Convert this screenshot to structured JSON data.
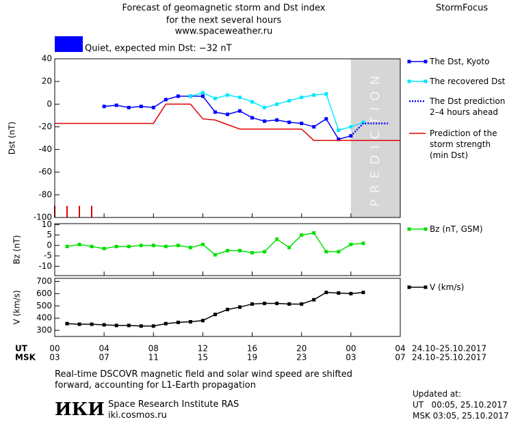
{
  "header": {
    "title": [
      "Forecast of geomagnetic storm and Dst index",
      "for the next several hours",
      "www.spaceweather.ru"
    ],
    "brand": "StormFocus",
    "status": "Quiet, expected min Dst: −32 nT",
    "status_color": "#0000ff"
  },
  "chart_data": [
    {
      "type": "line",
      "ylabel": "Dst (nT)",
      "ylim": [
        -100,
        40
      ],
      "yticks": [
        40,
        20,
        0,
        -20,
        -40,
        -60,
        -80,
        -100
      ],
      "prediction_region": [
        24,
        28
      ],
      "prediction_label": "PREDICTION",
      "series": [
        {
          "name": "The Dst, Kyoto",
          "color": "#0000ff",
          "marker": true,
          "dash": "solid",
          "x": [
            4,
            5,
            6,
            7,
            8,
            9,
            10,
            11,
            12,
            13,
            14,
            15,
            16,
            17,
            18,
            19,
            20,
            21,
            22,
            23,
            24
          ],
          "values": [
            -2,
            -1,
            -3,
            -2,
            -3,
            4,
            7,
            7,
            7,
            -7,
            -9,
            -6,
            -12,
            -15,
            -14,
            -16,
            -17,
            -20,
            -13,
            -31,
            -28
          ]
        },
        {
          "name": "The recovered Dst",
          "color": "#00e8ff",
          "marker": true,
          "dash": "solid",
          "x": [
            11,
            12,
            13,
            14,
            15,
            16,
            17,
            18,
            19,
            20,
            21,
            22,
            23,
            24,
            25
          ],
          "values": [
            7,
            10,
            5,
            8,
            6,
            2,
            -3,
            0,
            3,
            6,
            8,
            9,
            -23,
            -20,
            -16
          ]
        },
        {
          "name": "The Dst prediction\n2–4 hours ahead",
          "color": "#0000ff",
          "marker": false,
          "dash": "dotted",
          "x": [
            24,
            25,
            27
          ],
          "values": [
            -28,
            -17,
            -17
          ]
        },
        {
          "name": "Prediction of the\nstorm strength\n(min Dst)",
          "color": "#e00000",
          "marker": false,
          "dash": "solid",
          "x": [
            0,
            8,
            9,
            11,
            12,
            13,
            14,
            15,
            20,
            21,
            28
          ],
          "values": [
            -17,
            -17,
            0,
            0,
            -13,
            -14,
            -18,
            -22,
            -22,
            -32,
            -32
          ]
        }
      ]
    },
    {
      "type": "line",
      "ylabel": "Bz (nT)",
      "ylim": [
        -14.5,
        10.5
      ],
      "yticks": [
        10,
        5,
        0,
        -5,
        -10
      ],
      "series": [
        {
          "name": "Bz (nT, GSM)",
          "color": "#00e000",
          "marker": true,
          "dash": "solid",
          "x": [
            1,
            2,
            3,
            4,
            5,
            6,
            7,
            8,
            9,
            10,
            11,
            12,
            13,
            14,
            15,
            16,
            17,
            18,
            19,
            20,
            21,
            22,
            23,
            24,
            25
          ],
          "values": [
            -0.5,
            0.5,
            -0.5,
            -1.5,
            -0.5,
            -0.5,
            0,
            0,
            -0.5,
            0,
            -1,
            0.5,
            -4.5,
            -2.5,
            -2.5,
            -3.5,
            -3,
            3,
            -1,
            5,
            6,
            -3,
            -3,
            0.5,
            1
          ]
        }
      ]
    },
    {
      "type": "line",
      "ylabel": "V (km/s)",
      "ylim": [
        250,
        725
      ],
      "yticks": [
        700,
        600,
        500,
        400,
        300
      ],
      "xlim": [
        0,
        28
      ],
      "xticks": [
        {
          "value": 0,
          "label": "00"
        },
        {
          "value": 4,
          "label": "04"
        },
        {
          "value": 8,
          "label": "08"
        },
        12,
        16,
        20,
        {
          "value": 24,
          "label": "00"
        },
        {
          "value": 28,
          "label": "04"
        }
      ],
      "msk_ticks": [
        "03",
        "07",
        "11",
        "15",
        "19",
        "23",
        "03",
        "07"
      ],
      "time_rows": [
        {
          "label": "UT",
          "date": "24.10–25.10.2017"
        },
        {
          "label": "MSK",
          "date": "24.10–25.10.2017"
        }
      ],
      "series": [
        {
          "name": "V (km/s)",
          "color": "#000000",
          "marker": true,
          "dash": "solid",
          "x": [
            1,
            2,
            3,
            4,
            5,
            6,
            7,
            8,
            9,
            10,
            11,
            12,
            13,
            14,
            15,
            16,
            17,
            18,
            19,
            20,
            21,
            22,
            23,
            24,
            25
          ],
          "values": [
            355,
            350,
            350,
            345,
            340,
            340,
            335,
            335,
            355,
            365,
            370,
            380,
            430,
            470,
            490,
            515,
            520,
            520,
            515,
            515,
            550,
            610,
            605,
            600,
            610
          ]
        }
      ]
    }
  ],
  "footer": {
    "note": "Real-time DSCOVR magnetic field and solar wind speed are shifted\nforward, accounting for L1-Earth propagation",
    "logo": "ИКИ",
    "institute": "Space Research Institute RAS",
    "site": "iki.cosmos.ru",
    "updated": [
      "Updated at:",
      "UT   00:05, 25.10.2017",
      "MSK 03:05, 25.10.2017"
    ]
  }
}
